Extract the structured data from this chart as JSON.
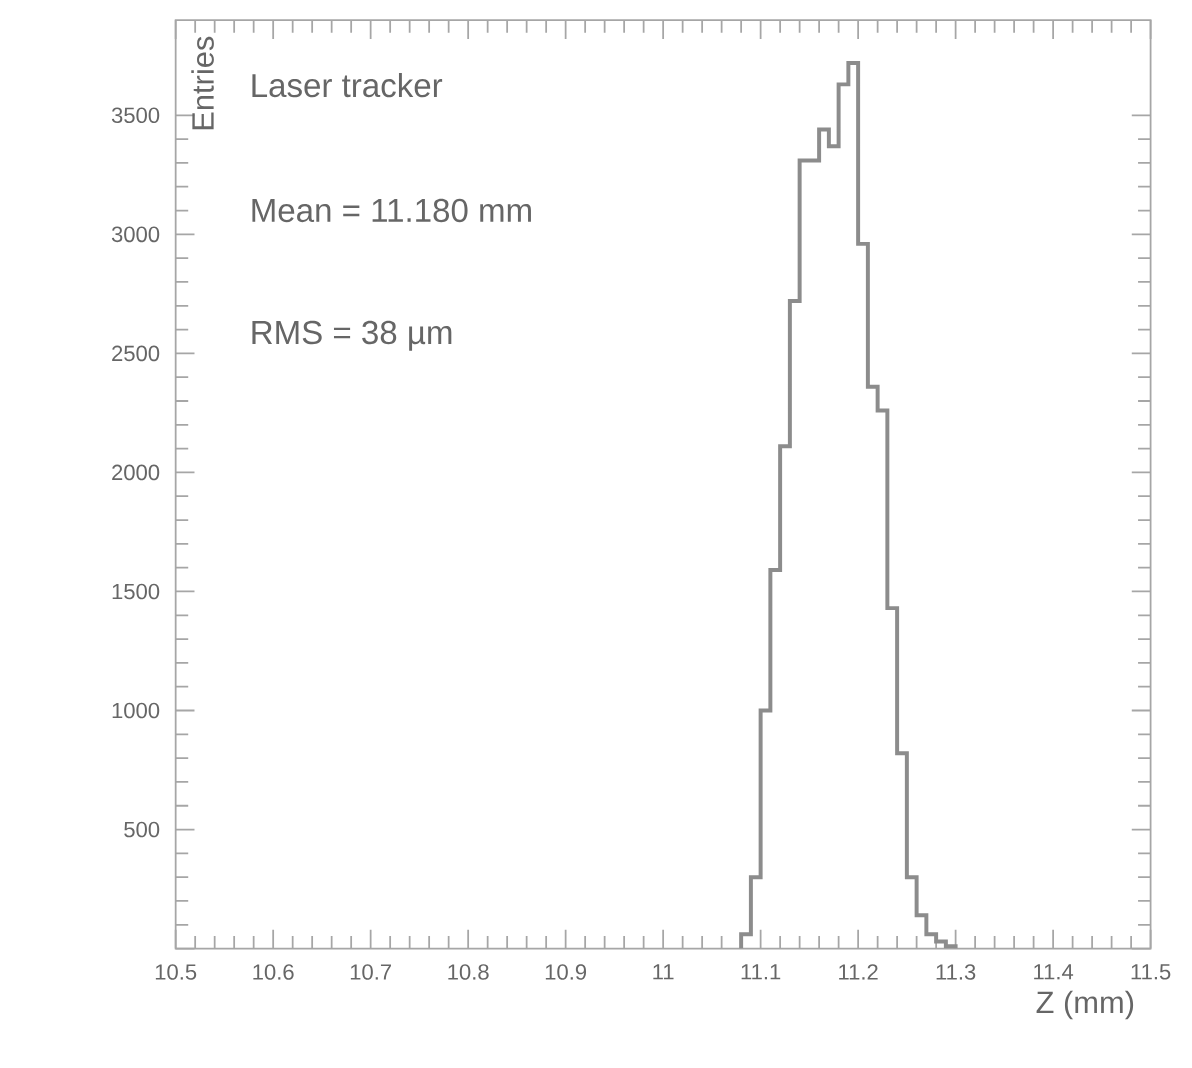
{
  "chart_data": {
    "type": "histogram",
    "xlabel": "Z (mm)",
    "ylabel": "Entries",
    "color": "#8c8c8c",
    "bins": [
      11.08,
      11.09,
      11.1,
      11.11,
      11.12,
      11.13,
      11.14,
      11.15,
      11.16,
      11.17,
      11.18,
      11.19,
      11.2,
      11.21,
      11.22,
      11.23,
      11.24,
      11.25,
      11.26,
      11.27,
      11.28,
      11.29,
      11.3
    ],
    "values": [
      60,
      300,
      1000,
      1590,
      2110,
      2720,
      3310,
      3310,
      3440,
      3370,
      3630,
      3720,
      2960,
      2360,
      2260,
      1430,
      820,
      300,
      140,
      60,
      30,
      10
    ],
    "xlim": [
      10.5,
      11.5
    ],
    "ylim": [
      0,
      3900
    ],
    "xticks": [
      10.5,
      10.6,
      10.7,
      10.8,
      10.9,
      11,
      11.1,
      11.2,
      11.3,
      11.4,
      11.5
    ],
    "yticks": [
      {
        "value": 0,
        "label": null
      },
      500,
      1000,
      1500,
      2000,
      2500,
      3000,
      3500
    ],
    "annotations": [
      "Laser tracker",
      "Mean = 11.180 mm",
      "RMS  = 38 µm"
    ]
  }
}
